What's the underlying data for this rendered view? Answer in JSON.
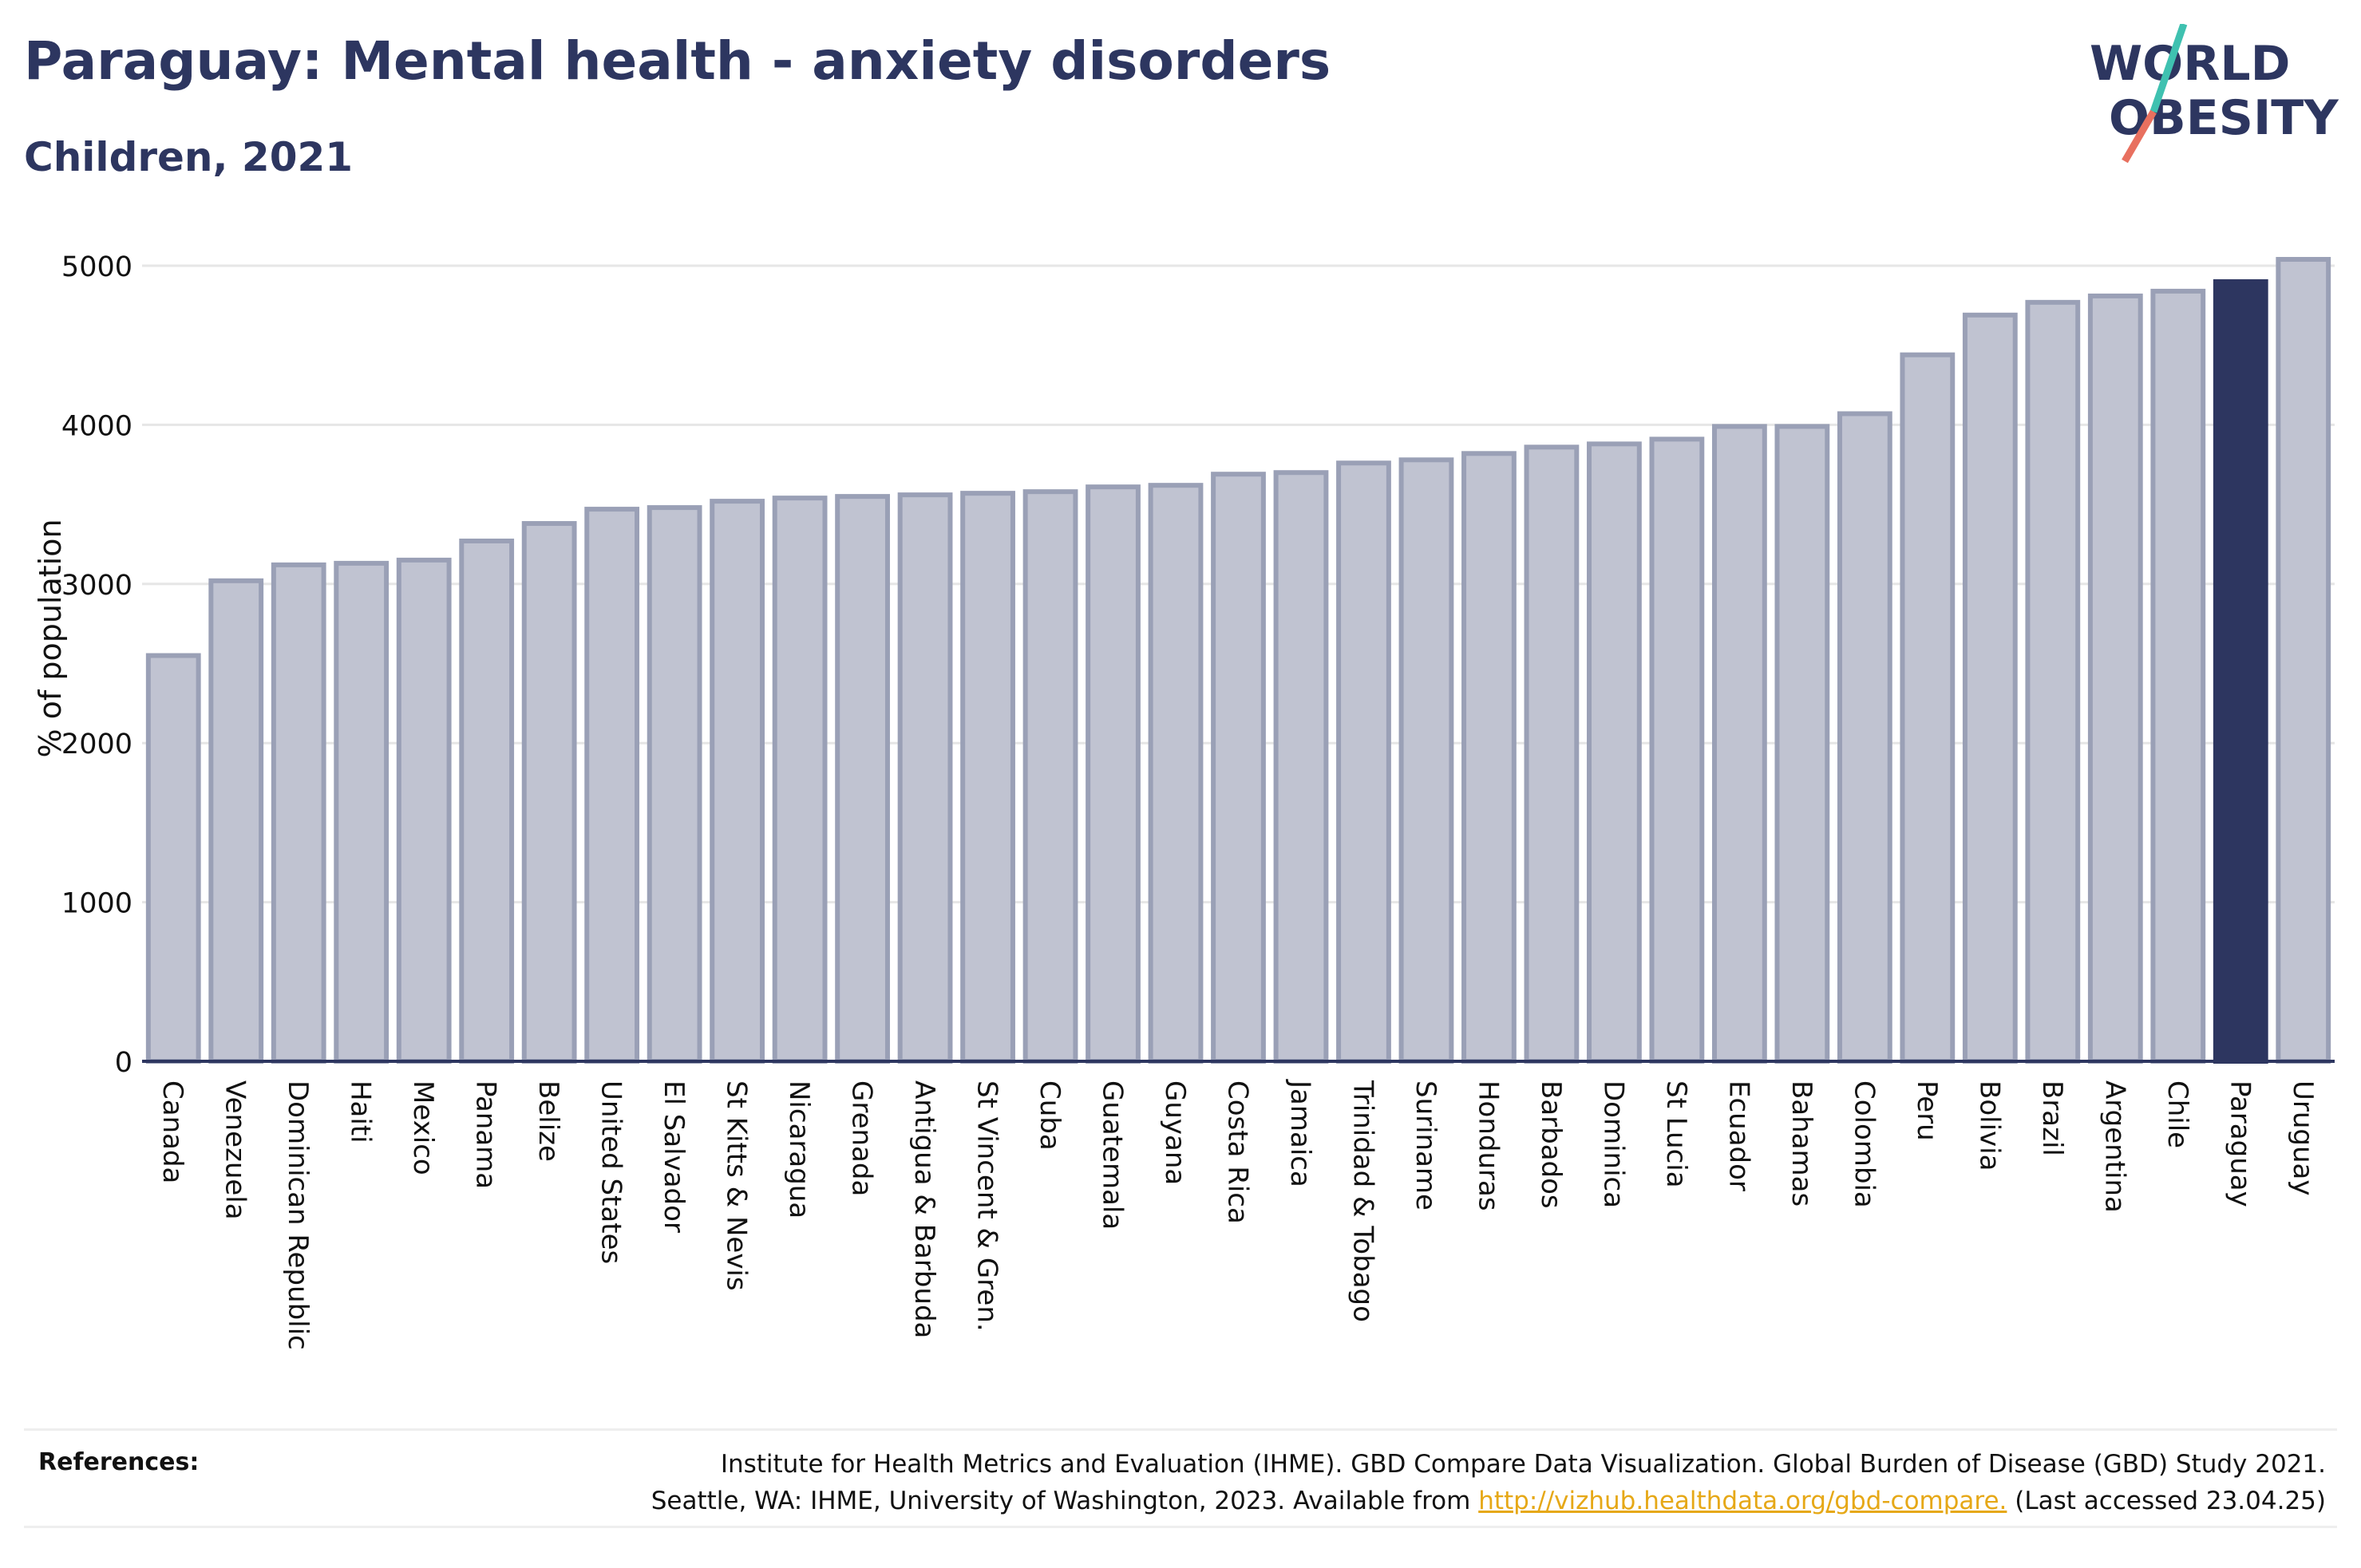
{
  "header": {
    "title": "Paraguay: Mental health - anxiety disorders",
    "subtitle": "Children, 2021"
  },
  "logo": {
    "line1": "WORLD",
    "line2": "OBESITY",
    "colors": {
      "text": "#2d3660",
      "slash_top": "#3fc1b0",
      "slash_bottom": "#e8705f"
    }
  },
  "chart_data": {
    "type": "bar",
    "ylabel": "% of population",
    "ylim": [
      0,
      5000
    ],
    "yticks": [
      0,
      1000,
      2000,
      3000,
      4000,
      5000
    ],
    "grid": true,
    "highlight": "Paraguay",
    "colors": {
      "bar": "#c0c3d1",
      "bar_border": "#9aa0b6",
      "highlight": "#2d3660",
      "grid": "#e6e6e6",
      "axis": "#2d3660"
    },
    "categories": [
      "Canada",
      "Venezuela",
      "Dominican Republic",
      "Haiti",
      "Mexico",
      "Panama",
      "Belize",
      "United States",
      "El Salvador",
      "St Kitts & Nevis",
      "Nicaragua",
      "Grenada",
      "Antigua & Barbuda",
      "St Vincent & Gren.",
      "Cuba",
      "Guatemala",
      "Guyana",
      "Costa Rica",
      "Jamaica",
      "Trinidad & Tobago",
      "Suriname",
      "Honduras",
      "Barbados",
      "Dominica",
      "St Lucia",
      "Ecuador",
      "Bahamas",
      "Colombia",
      "Peru",
      "Bolivia",
      "Brazil",
      "Argentina",
      "Chile",
      "Paraguay",
      "Uruguay"
    ],
    "values": [
      2550,
      3020,
      3120,
      3130,
      3150,
      3270,
      3380,
      3470,
      3480,
      3520,
      3540,
      3550,
      3560,
      3570,
      3580,
      3610,
      3620,
      3690,
      3700,
      3760,
      3780,
      3820,
      3860,
      3880,
      3910,
      3990,
      3990,
      4070,
      4440,
      4690,
      4770,
      4810,
      4840,
      4900,
      5040
    ]
  },
  "references": {
    "label": "References:",
    "line1": "Institute for Health Metrics and Evaluation (IHME). GBD Compare Data Visualization. Global Burden of Disease (GBD) Study 2021.",
    "line2_pre": "Seattle, WA: IHME, University of Washington, 2023. Available from ",
    "link": "http://vizhub.healthdata.org/gbd-compare.",
    "line2_post": " (Last accessed 23.04.25)"
  }
}
